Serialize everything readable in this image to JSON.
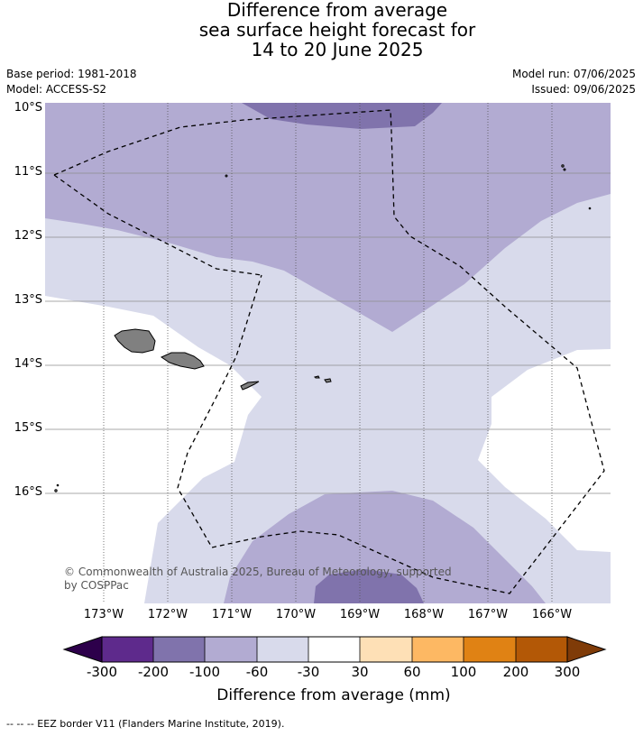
{
  "title": {
    "line1": "Difference from average",
    "line2": "sea surface height forecast for",
    "line3": "14 to 20 June 2025"
  },
  "meta": {
    "base_period": "Base period: 1981-2018",
    "model": "Model: ACCESS-S2",
    "model_run": "Model run: 07/06/2025",
    "issued": "Issued: 09/06/2025"
  },
  "map": {
    "lat_labels": [
      "10°S",
      "11°S",
      "12°S",
      "13°S",
      "14°S",
      "15°S",
      "16°S"
    ],
    "lon_labels": [
      "173°W",
      "172°W",
      "171°W",
      "170°W",
      "169°W",
      "168°W",
      "167°W",
      "166°W"
    ],
    "copyright_line1": "© Commonwealth of Australia 2025, Bureau of Meteorology, supported",
    "copyright_line2": "by COSPPac",
    "land_color": "#808080",
    "eez_style": "dashed black"
  },
  "legend": {
    "title": "Difference from average (mm)",
    "tick_labels": [
      "-300",
      "-200",
      "-100",
      "-60",
      "-30",
      "30",
      "60",
      "100",
      "200",
      "300"
    ],
    "colors": {
      "below_-300": "#2d004b",
      "-300_-200": "#5e2a8c",
      "-200_-100": "#8073ac",
      "-100_-60": "#b2abd2",
      "-60_-30": "#d8daeb",
      "-30_30": "#ffffff",
      "30_60": "#fee0b6",
      "60_100": "#fdb863",
      "100_200": "#e08214",
      "200_300": "#b35806",
      "above_300": "#7f3b08"
    }
  },
  "footnote": "--  --  -- EEZ border V11 (Flanders Marine Institute, 2019)."
}
